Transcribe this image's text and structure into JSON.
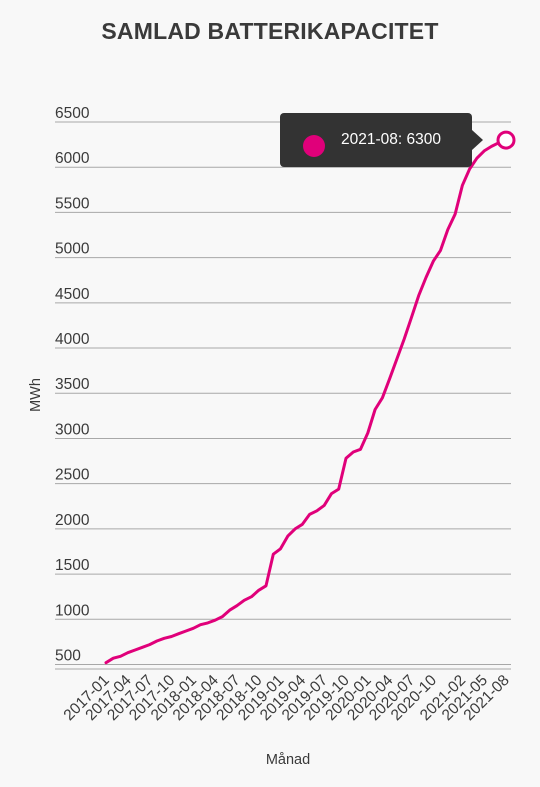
{
  "chart_data": {
    "type": "line",
    "title": "SAMLAD BATTERIKAPACITET",
    "xlabel": "Månad",
    "ylabel": "MWh",
    "ylim": [
      450,
      6500
    ],
    "yticks": [
      500,
      1000,
      1500,
      2000,
      2500,
      3000,
      3500,
      4000,
      4500,
      5000,
      5500,
      6000,
      6500
    ],
    "x_tick_labels": [
      "2017-01",
      "2017-04",
      "2017-07",
      "2017-10",
      "2018-01",
      "2018-04",
      "2018-07",
      "2018-10",
      "2019-01",
      "2019-04",
      "2019-07",
      "2019-10",
      "2020-01",
      "2020-04",
      "2020-07",
      "2020-10",
      "2021-02",
      "2021-05",
      "2021-08"
    ],
    "grid": "horizontal",
    "legend": "none",
    "series_color": "#e0007a",
    "series": [
      {
        "x": [
          "2017-01",
          "2017-02",
          "2017-03",
          "2017-04",
          "2017-05",
          "2017-06",
          "2017-07",
          "2017-08",
          "2017-09",
          "2017-10",
          "2017-11",
          "2017-12",
          "2018-01",
          "2018-02",
          "2018-03",
          "2018-04",
          "2018-05",
          "2018-06",
          "2018-07",
          "2018-08",
          "2018-09",
          "2018-10",
          "2018-11",
          "2018-12",
          "2019-01",
          "2019-02",
          "2019-03",
          "2019-04",
          "2019-05",
          "2019-06",
          "2019-07",
          "2019-08",
          "2019-09",
          "2019-10",
          "2019-11",
          "2019-12",
          "2020-01",
          "2020-02",
          "2020-03",
          "2020-04",
          "2020-05",
          "2020-06",
          "2020-07",
          "2020-08",
          "2020-09",
          "2020-10",
          "2020-11",
          "2020-12",
          "2021-01",
          "2021-02",
          "2021-03",
          "2021-04",
          "2021-05",
          "2021-06",
          "2021-07",
          "2021-08"
        ],
        "values": [
          520,
          570,
          590,
          630,
          660,
          690,
          720,
          760,
          790,
          810,
          840,
          870,
          900,
          940,
          960,
          990,
          1030,
          1100,
          1150,
          1210,
          1250,
          1320,
          1370,
          1720,
          1780,
          1920,
          2000,
          2050,
          2160,
          2200,
          2260,
          2390,
          2440,
          2780,
          2850,
          2880,
          3060,
          3320,
          3450,
          3660,
          3880,
          4100,
          4340,
          4580,
          4780,
          4960,
          5080,
          5310,
          5480,
          5800,
          5980,
          6100,
          6180,
          6230,
          6270,
          6300
        ]
      }
    ],
    "tooltip": {
      "text": "2021-08: 6300",
      "value": 6300
    }
  }
}
